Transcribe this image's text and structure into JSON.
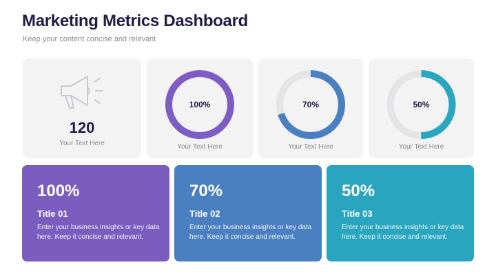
{
  "header": {
    "title": "Marketing Metrics Dashboard",
    "subtitle": "Keep your content concise and relevant"
  },
  "stat_card": {
    "value": "120",
    "caption": "Your Text Here"
  },
  "donuts": [
    {
      "value": 100,
      "label": "100%",
      "caption": "Your Text Here",
      "color": "#7d5cc4"
    },
    {
      "value": 70,
      "label": "70%",
      "caption": "Your Text Here",
      "color": "#4a7fc1"
    },
    {
      "value": 50,
      "label": "50%",
      "caption": "Your Text Here",
      "color": "#2aa7c0"
    }
  ],
  "cards": [
    {
      "percent": "100%",
      "title": "Title 01",
      "body": "Enter your business insights or key data here. Keep it concise and relevant.",
      "color": "#7b5cbf"
    },
    {
      "percent": "70%",
      "title": "Title 02",
      "body": "Enter your business insights or key data here. Keep it concise and relevant.",
      "color": "#4a7fc1"
    },
    {
      "percent": "50%",
      "title": "Title 03",
      "body": "Enter your business insights or key data here. Keep it concise and relevant.",
      "color": "#2aa5c0"
    }
  ]
}
